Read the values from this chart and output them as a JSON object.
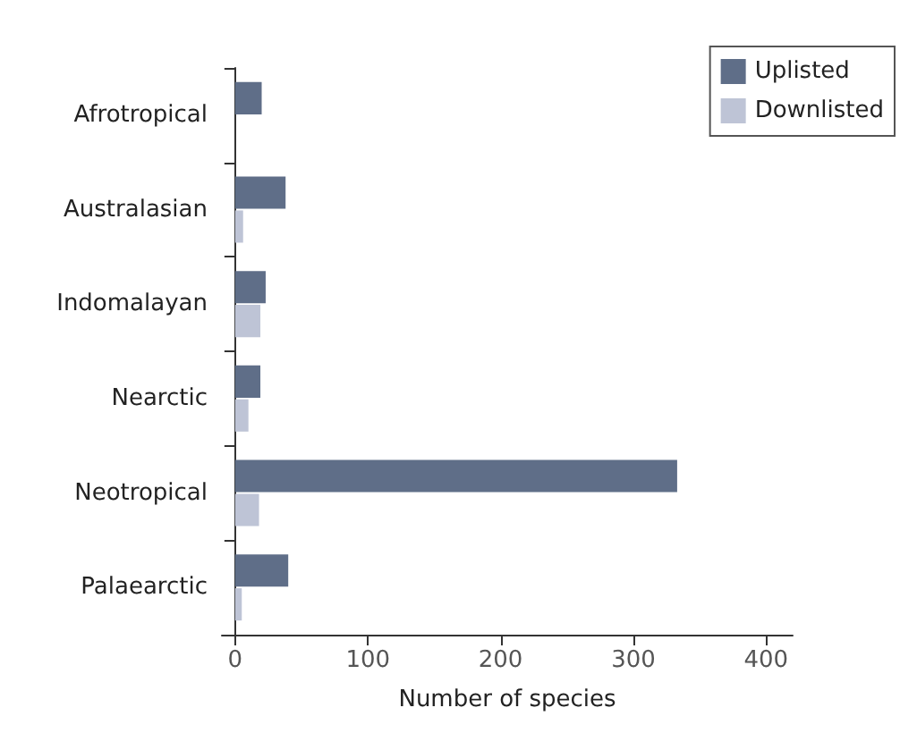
{
  "chart_data": {
    "type": "bar",
    "orientation": "horizontal",
    "xlabel": "Number of species",
    "categories": [
      "Afrotropical",
      "Australasian",
      "Indomalayan",
      "Nearctic",
      "Neotropical",
      "Palaearctic"
    ],
    "series": [
      {
        "name": "Uplisted",
        "color": "#5f6e88",
        "values": [
          20,
          38,
          23,
          19,
          333,
          40
        ]
      },
      {
        "name": "Downlisted",
        "color": "#bec4d6",
        "values": [
          null,
          6,
          19,
          10,
          18,
          5
        ]
      }
    ],
    "xlim": [
      -10,
      420
    ],
    "xticks": [
      0,
      100,
      200,
      300,
      400
    ],
    "grid": false,
    "legend": "top right"
  }
}
